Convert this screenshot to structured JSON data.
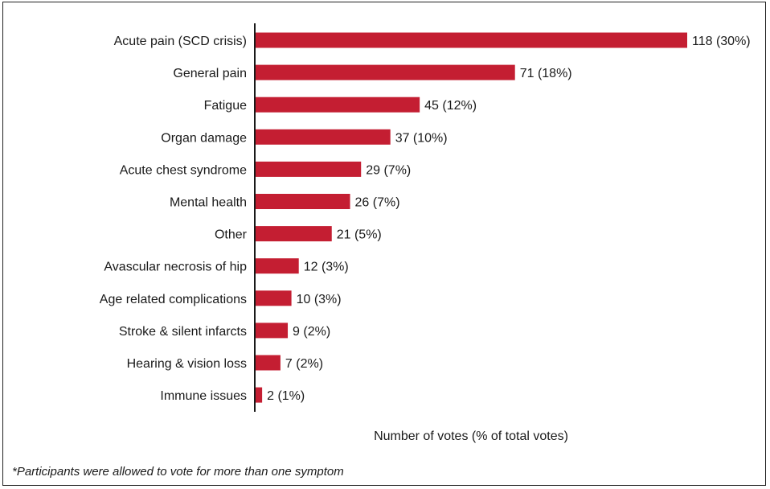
{
  "chart_data": {
    "type": "bar",
    "orientation": "horizontal",
    "categories": [
      "Acute pain (SCD crisis)",
      "General pain",
      "Fatigue",
      "Organ damage",
      "Acute chest syndrome",
      "Mental health",
      "Other",
      "Avascular necrosis of hip",
      "Age related complications",
      "Stroke & silent infarcts",
      "Hearing & vision loss",
      "Immune issues"
    ],
    "values": [
      118,
      71,
      45,
      37,
      29,
      26,
      21,
      12,
      10,
      9,
      7,
      2
    ],
    "data_labels": [
      "118 (30%)",
      "71 (18%)",
      "45 (12%)",
      "37 (10%)",
      "29 (7%)",
      "26 (7%)",
      "21 (5%)",
      "12 (3%)",
      "10 (3%)",
      "9 (2%)",
      "7 (2%)",
      "2 (1%)"
    ],
    "xlabel": "Number of votes (% of total votes)",
    "ylabel": "",
    "xlim": [
      0,
      118
    ],
    "grid": false,
    "bar_color": "#c41e32"
  },
  "footnote": "*Participants were allowed to vote for more than one symptom"
}
